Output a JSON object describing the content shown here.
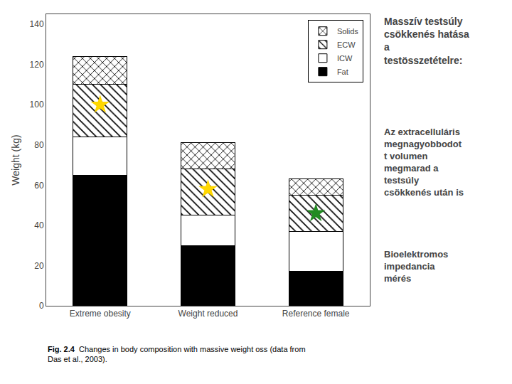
{
  "chart_data": {
    "type": "bar",
    "stacked": true,
    "categories": [
      "Extreme obesity",
      "Weight reduced",
      "Reference female"
    ],
    "series": [
      {
        "name": "Fat",
        "color": "#000000",
        "values": [
          65,
          30,
          17
        ]
      },
      {
        "name": "ICW",
        "color": "#ffffff",
        "values": [
          19,
          15,
          20
        ]
      },
      {
        "name": "ECW",
        "color": "#ffffff",
        "values": [
          26,
          23,
          18
        ]
      },
      {
        "name": "Solids",
        "color": "#ffffff",
        "values": [
          14,
          13,
          8
        ]
      },
      {
        "type": "scatter",
        "marker": "star",
        "colors": [
          "#FFD700",
          "#FFD700",
          "#228B22"
        ],
        "values": [
          100,
          58,
          46
        ]
      }
    ],
    "ylabel": "Weight (kg)",
    "ylim": [
      0,
      145
    ],
    "yticks": [
      0,
      20,
      40,
      60,
      80,
      100,
      120,
      140
    ],
    "grid": false,
    "legend": "upper right",
    "annotations": [
      "Fig. 2.4",
      "Changes in body composition with massive weight oss (data from\nDas et al., 2003).",
      "Masszív testsúly\ncsökkenés hatása\na\ntestösszetételre:",
      "Az extracelluláris\nmegnagyobbodot\nt volumen\nmegmarad a\ntestsúly\ncsökkenés után is",
      "Bioelektromos\nimpedancia\nmérés"
    ]
  }
}
